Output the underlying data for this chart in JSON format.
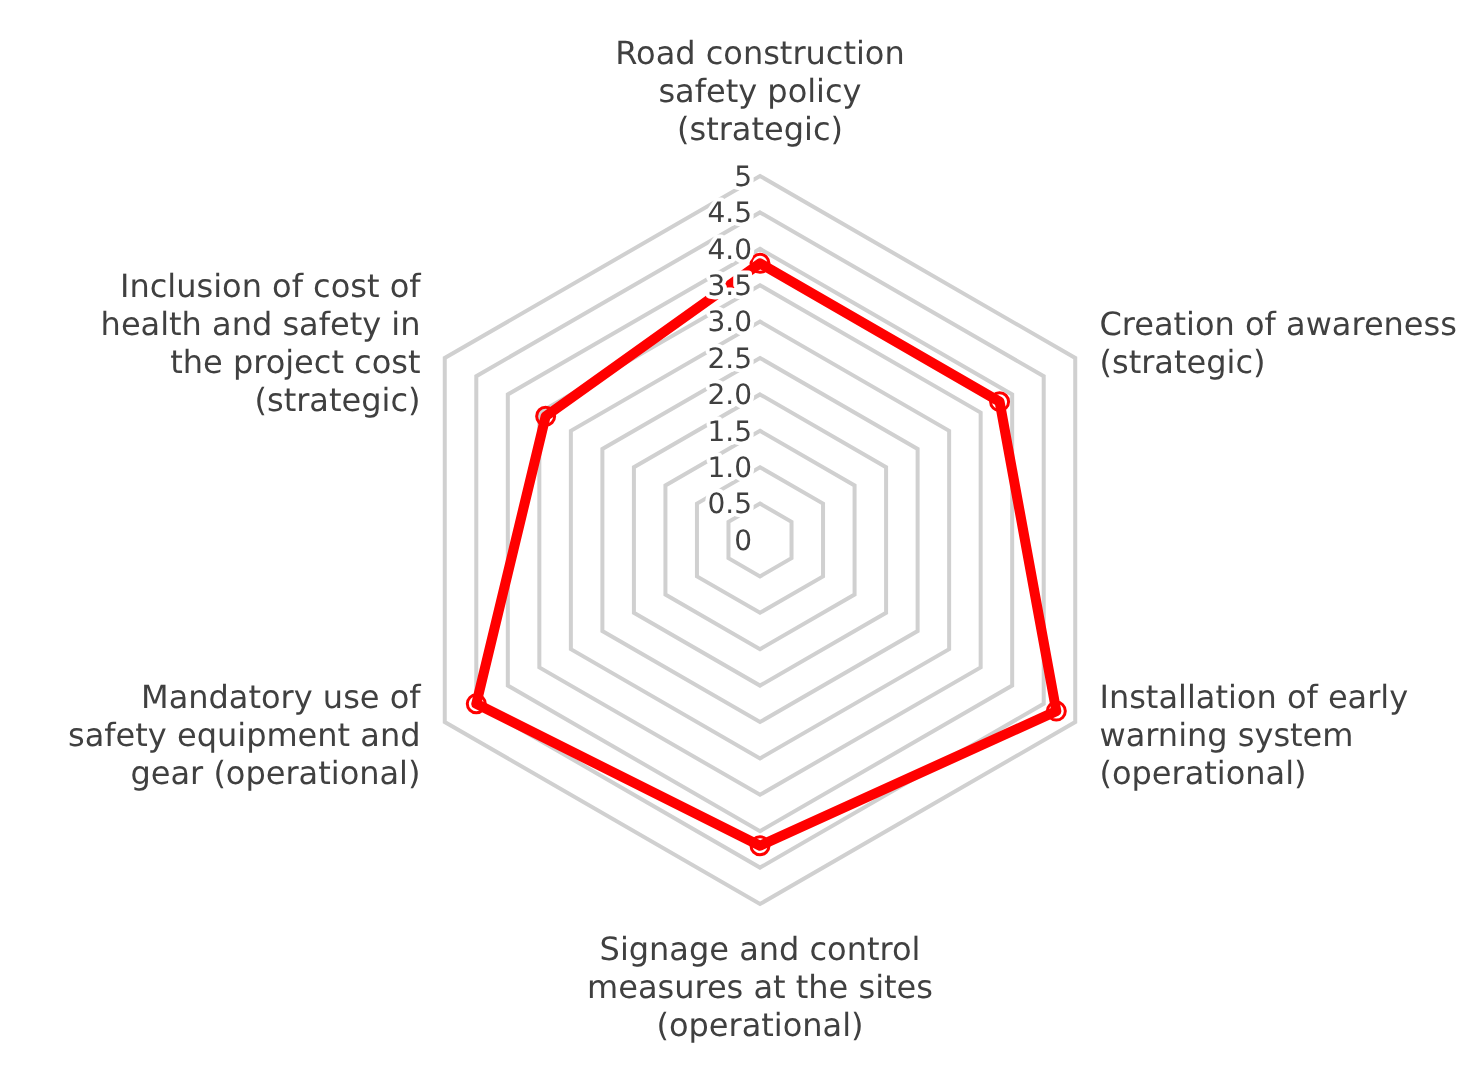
{
  "chart_data": {
    "type": "radar",
    "categories": [
      "Road construction safety policy (strategic)",
      "Creation of awareness (strategic)",
      "Installation of early warning system (operational)",
      "Signage and control measures at the sites (operational)",
      "Mandatory use of safety equipment and gear (operational)",
      "Inclusion of cost of health and safety in the project cost (strategic)"
    ],
    "series": [
      {
        "color": "#ff0000",
        "values": [
          3.8,
          3.8,
          4.7,
          4.2,
          4.5,
          3.4
        ]
      }
    ],
    "ylim": [
      0,
      5
    ],
    "yticks": [
      0,
      {
        "value": 0.5,
        "label": "0.5"
      },
      {
        "value": 1,
        "label": "1.0"
      },
      {
        "value": 1.5,
        "label": "1.5"
      },
      {
        "value": 2,
        "label": "2.0"
      },
      {
        "value": 2.5,
        "label": "2.5"
      },
      {
        "value": 3,
        "label": "3.0"
      },
      {
        "value": 3.5,
        "label": "3.5"
      },
      {
        "value": 4,
        "label": "4.0"
      },
      {
        "value": 4.5,
        "label": "4.5"
      },
      5
    ],
    "grid": true,
    "marker": "circle"
  }
}
